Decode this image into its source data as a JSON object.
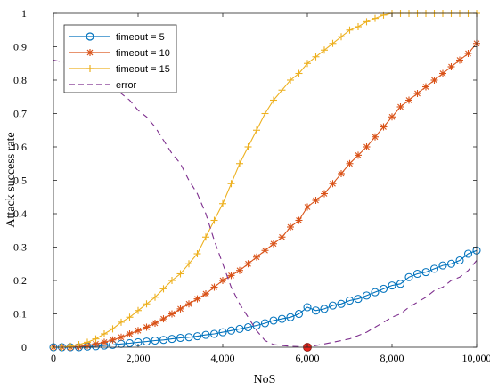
{
  "chart_data": {
    "type": "line",
    "xlabel": "NoS",
    "ylabel": "Attack success rate",
    "xlim": [
      0,
      10000
    ],
    "ylim": [
      0,
      1
    ],
    "x_ticks": [
      0,
      2000,
      4000,
      6000,
      8000,
      10000
    ],
    "x_tick_labels": [
      "0",
      "2,000",
      "4,000",
      "6,000",
      "8,000",
      "10,000"
    ],
    "y_ticks": [
      0,
      0.1,
      0.2,
      0.3,
      0.4,
      0.5,
      0.6,
      0.7,
      0.8,
      0.9,
      1
    ],
    "y_tick_labels": [
      "0",
      "0.1",
      "0.2",
      "0.3",
      "0.4",
      "0.5",
      "0.6",
      "0.7",
      "0.8",
      "0.9",
      "1"
    ],
    "grid": false,
    "legend_position": "top-left",
    "series": [
      {
        "name": "timeout = 5",
        "color": "#0072BD",
        "marker": "circle",
        "x": [
          0,
          200,
          400,
          600,
          800,
          1000,
          1200,
          1400,
          1600,
          1800,
          2000,
          2200,
          2400,
          2600,
          2800,
          3000,
          3200,
          3400,
          3600,
          3800,
          4000,
          4200,
          4400,
          4600,
          4800,
          5000,
          5200,
          5400,
          5600,
          5800,
          6000,
          6200,
          6400,
          6600,
          6800,
          7000,
          7200,
          7400,
          7600,
          7800,
          8000,
          8200,
          8400,
          8600,
          8800,
          9000,
          9200,
          9400,
          9600,
          9800,
          10000
        ],
        "values": [
          0,
          0,
          0,
          0,
          0.002,
          0.003,
          0.005,
          0.007,
          0.01,
          0.012,
          0.015,
          0.017,
          0.02,
          0.022,
          0.025,
          0.028,
          0.03,
          0.033,
          0.037,
          0.04,
          0.045,
          0.05,
          0.055,
          0.06,
          0.065,
          0.072,
          0.08,
          0.085,
          0.09,
          0.1,
          0.12,
          0.11,
          0.115,
          0.125,
          0.13,
          0.14,
          0.145,
          0.155,
          0.165,
          0.175,
          0.185,
          0.19,
          0.21,
          0.22,
          0.225,
          0.235,
          0.245,
          0.25,
          0.26,
          0.28,
          0.29
        ]
      },
      {
        "name": "timeout = 10",
        "color": "#D95319",
        "marker": "star",
        "x": [
          0,
          200,
          400,
          600,
          800,
          1000,
          1200,
          1400,
          1600,
          1800,
          2000,
          2200,
          2400,
          2600,
          2800,
          3000,
          3200,
          3400,
          3600,
          3800,
          4000,
          4200,
          4400,
          4600,
          4800,
          5000,
          5200,
          5400,
          5600,
          5800,
          6000,
          6200,
          6400,
          6600,
          6800,
          7000,
          7200,
          7400,
          7600,
          7800,
          8000,
          8200,
          8400,
          8600,
          8800,
          9000,
          9200,
          9400,
          9600,
          9800,
          10000
        ],
        "values": [
          0,
          0,
          0,
          0.002,
          0.005,
          0.01,
          0.015,
          0.022,
          0.03,
          0.04,
          0.05,
          0.06,
          0.072,
          0.085,
          0.1,
          0.115,
          0.13,
          0.145,
          0.16,
          0.18,
          0.2,
          0.215,
          0.23,
          0.25,
          0.27,
          0.29,
          0.31,
          0.33,
          0.36,
          0.38,
          0.42,
          0.44,
          0.46,
          0.49,
          0.52,
          0.55,
          0.575,
          0.6,
          0.63,
          0.66,
          0.69,
          0.72,
          0.74,
          0.76,
          0.78,
          0.8,
          0.82,
          0.84,
          0.86,
          0.88,
          0.91
        ]
      },
      {
        "name": "timeout = 15",
        "color": "#EDB120",
        "marker": "plus",
        "x": [
          0,
          200,
          400,
          600,
          800,
          1000,
          1200,
          1400,
          1600,
          1800,
          2000,
          2200,
          2400,
          2600,
          2800,
          3000,
          3200,
          3400,
          3600,
          3800,
          4000,
          4200,
          4400,
          4600,
          4800,
          5000,
          5200,
          5400,
          5600,
          5800,
          6000,
          6200,
          6400,
          6600,
          6800,
          7000,
          7200,
          7400,
          7600,
          7800,
          8000,
          8200,
          8400,
          8600,
          8800,
          9000,
          9200,
          9400,
          9600,
          9800,
          10000
        ],
        "values": [
          0,
          0,
          0.003,
          0.008,
          0.015,
          0.025,
          0.04,
          0.055,
          0.075,
          0.09,
          0.11,
          0.13,
          0.15,
          0.175,
          0.2,
          0.22,
          0.25,
          0.28,
          0.33,
          0.38,
          0.43,
          0.49,
          0.55,
          0.6,
          0.65,
          0.7,
          0.74,
          0.77,
          0.8,
          0.82,
          0.85,
          0.87,
          0.89,
          0.91,
          0.93,
          0.95,
          0.96,
          0.975,
          0.985,
          0.995,
          1,
          1,
          1,
          1,
          1,
          1,
          1,
          1,
          1,
          1,
          1
        ]
      },
      {
        "name": "error",
        "color": "#7E2F8E",
        "marker": "none",
        "dashed": true,
        "x": [
          0,
          200,
          400,
          600,
          800,
          1000,
          1200,
          1400,
          1600,
          1800,
          2000,
          2200,
          2400,
          2600,
          2800,
          3000,
          3200,
          3400,
          3600,
          3800,
          4000,
          4200,
          4400,
          4600,
          4800,
          5000,
          5200,
          5400,
          5600,
          5800,
          6000,
          6200,
          6400,
          6600,
          6800,
          7000,
          7200,
          7400,
          7600,
          7800,
          8000,
          8200,
          8400,
          8600,
          8800,
          9000,
          9200,
          9400,
          9600,
          9800,
          10000
        ],
        "values": [
          0.86,
          0.855,
          0.85,
          0.84,
          0.82,
          0.8,
          0.79,
          0.78,
          0.76,
          0.74,
          0.71,
          0.69,
          0.66,
          0.62,
          0.58,
          0.55,
          0.5,
          0.46,
          0.4,
          0.32,
          0.25,
          0.18,
          0.13,
          0.09,
          0.05,
          0.02,
          0.008,
          0.005,
          0.003,
          0.002,
          0,
          0.005,
          0.01,
          0.015,
          0.02,
          0.025,
          0.035,
          0.045,
          0.06,
          0.075,
          0.09,
          0.1,
          0.12,
          0.135,
          0.15,
          0.17,
          0.18,
          0.2,
          0.21,
          0.23,
          0.26
        ]
      }
    ],
    "highlight_point": {
      "x": 6000,
      "y": 0,
      "color": "#E8251D"
    }
  }
}
